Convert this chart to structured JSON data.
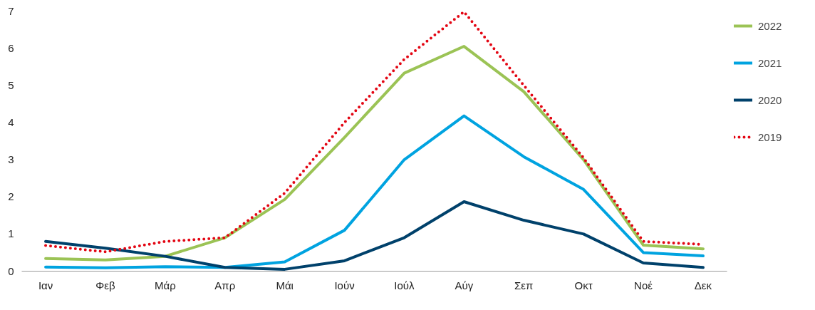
{
  "chart_data": {
    "type": "line",
    "categories": [
      "Ιαν",
      "Φεβ",
      "Μάρ",
      "Απρ",
      "Μάι",
      "Ιούν",
      "Ιούλ",
      "Αύγ",
      "Σεπ",
      "Οκτ",
      "Νοέ",
      "Δεκ"
    ],
    "ylim": [
      0,
      7
    ],
    "yticks": [
      0,
      1,
      2,
      3,
      4,
      5,
      6,
      7
    ],
    "grid": false,
    "legend": "right",
    "marker": "none",
    "series": [
      {
        "name": "2022",
        "color": "#9bc355",
        "line_style": "solid",
        "values": [
          0.34,
          0.3,
          0.4,
          0.9,
          1.93,
          3.6,
          5.33,
          6.05,
          4.83,
          3.0,
          0.7,
          0.6
        ]
      },
      {
        "name": "2021",
        "color": "#00a3e0",
        "line_style": "solid",
        "values": [
          0.11,
          0.09,
          0.12,
          0.1,
          0.25,
          1.1,
          3.0,
          4.18,
          3.08,
          2.2,
          0.5,
          0.41
        ]
      },
      {
        "name": "2020",
        "color": "#00416b",
        "line_style": "solid",
        "values": [
          0.8,
          0.62,
          0.4,
          0.1,
          0.05,
          0.28,
          0.9,
          1.87,
          1.37,
          1.0,
          0.22,
          0.1
        ]
      },
      {
        "name": "2019",
        "color": "#e30613",
        "line_style": "dotted",
        "values": [
          0.69,
          0.52,
          0.8,
          0.9,
          2.1,
          4.0,
          5.7,
          6.98,
          5.0,
          3.05,
          0.8,
          0.72
        ]
      }
    ]
  }
}
